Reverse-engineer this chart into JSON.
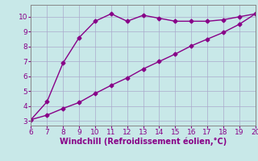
{
  "xlabel": "Windchill (Refroidissement éolien,°C)",
  "line1_x": [
    6,
    7,
    8,
    9,
    10,
    11,
    12,
    13,
    14,
    15,
    16,
    17,
    18,
    19,
    20
  ],
  "line1_y": [
    3.1,
    4.3,
    6.9,
    8.6,
    9.7,
    10.2,
    9.7,
    10.1,
    9.9,
    9.7,
    9.7,
    9.7,
    9.8,
    10.0,
    10.2
  ],
  "line2_x": [
    6,
    7,
    8,
    9,
    10,
    11,
    12,
    13,
    14,
    15,
    16,
    17,
    18,
    19,
    20
  ],
  "line2_y": [
    3.1,
    3.4,
    3.85,
    4.25,
    4.85,
    5.4,
    5.9,
    6.5,
    7.0,
    7.5,
    8.05,
    8.5,
    8.95,
    9.5,
    10.2
  ],
  "line_color": "#880088",
  "bg_color": "#c8e8e8",
  "plot_bg_color": "#c8e8e8",
  "grid_color": "#aaaacc",
  "xlim": [
    6,
    20
  ],
  "ylim": [
    2.7,
    10.8
  ],
  "xticks": [
    6,
    7,
    8,
    9,
    10,
    11,
    12,
    13,
    14,
    15,
    16,
    17,
    18,
    19,
    20
  ],
  "yticks": [
    3,
    4,
    5,
    6,
    7,
    8,
    9,
    10
  ],
  "marker": "D",
  "markersize": 2.5,
  "linewidth": 1.0,
  "tick_fontsize": 6.5,
  "xlabel_fontsize": 7.0
}
